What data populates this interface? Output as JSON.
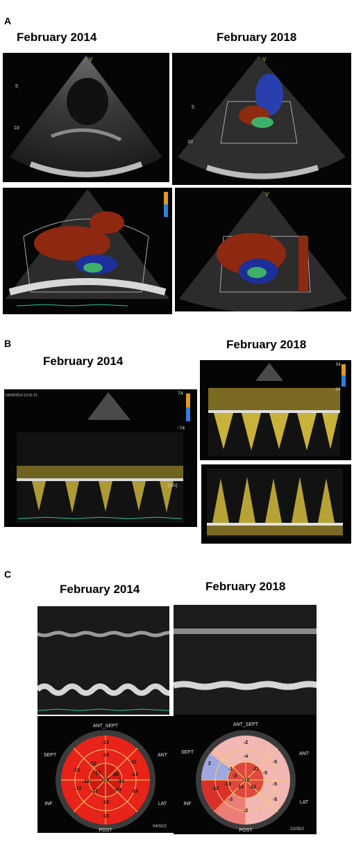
{
  "panel_a": {
    "letter": "A",
    "date_left": "February 2014",
    "date_right": "February 2018"
  },
  "panel_b": {
    "letter": "B",
    "date_left": "February 2014",
    "date_right": "February 2018",
    "scale_top_left": "74",
    "scale_bottom_left": "-74",
    "scale_top_right": "54",
    "scale_bottom_right": "-54",
    "unit": "[m/s]",
    "timestamp_left": "04/02/2014 13:31:21"
  },
  "panel_c": {
    "letter": "C",
    "date_left": "February 2014",
    "date_right": "February 2018",
    "bullseye_labels": {
      "ant_sept": "ANT_SEPT",
      "sept": "SEPT",
      "ant": "ANT",
      "inf": "INF",
      "lat": "LAT",
      "post": "POST"
    },
    "strain_2014": [
      "-13",
      "-14",
      "-12",
      "-11",
      "-15",
      "-17",
      "-18",
      "-16",
      "-13",
      "-15",
      "-12",
      "-16",
      "-13",
      "-13",
      "-17",
      "-13",
      "-16"
    ],
    "strain_2018": [
      "-2",
      "-4",
      "-1",
      "-11",
      "-5",
      "-5",
      "-3",
      "-12",
      "-13",
      "-5",
      "-14",
      "-12",
      "-12",
      "2",
      "-3",
      "-2",
      "-5"
    ],
    "date_stamp_left": "04/02/2",
    "date_stamp_right": "22/05/2"
  }
}
